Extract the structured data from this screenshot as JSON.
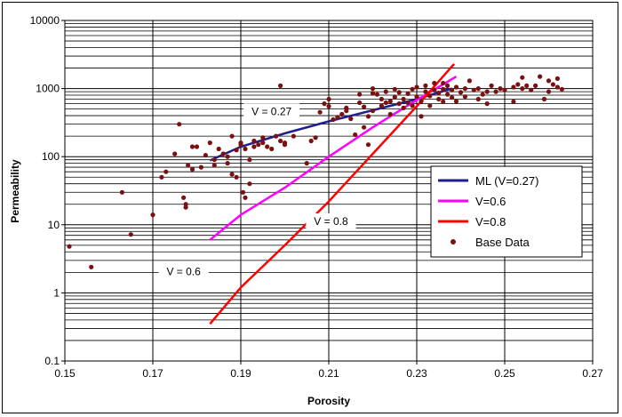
{
  "chart_data": {
    "type": "scatter",
    "title": "",
    "xlabel": "Porosity",
    "ylabel": "Permeability",
    "xlim": [
      0.15,
      0.27
    ],
    "ylim": [
      0.1,
      10000
    ],
    "yscale": "log",
    "x_ticks": [
      "0.15",
      "0.17",
      "0.19",
      "0.21",
      "0.23",
      "0.25",
      "0.27"
    ],
    "y_ticks": [
      "0.1",
      "1",
      "10",
      "100",
      "1000",
      "10000"
    ],
    "grid": true,
    "legend_position": "right",
    "annotations": [
      {
        "text": "V = 0.27",
        "x": 0.197,
        "y": 460
      },
      {
        "text": "V = 0.6",
        "x": 0.177,
        "y": 2.05
      },
      {
        "text": "V = 0.8",
        "x": 0.2105,
        "y": 11.2
      }
    ],
    "series": [
      {
        "name": "ML (V=0.27)",
        "kind": "line",
        "color": "#1f1f8f",
        "x": [
          0.183,
          0.19,
          0.2,
          0.21,
          0.22,
          0.23,
          0.238
        ],
        "y": [
          88,
          140,
          220,
          330,
          480,
          700,
          1000
        ]
      },
      {
        "name": "V=0.6",
        "kind": "line",
        "color": "#ff00ff",
        "x": [
          0.183,
          0.19,
          0.2,
          0.21,
          0.22,
          0.23,
          0.239
        ],
        "y": [
          6,
          14,
          35,
          100,
          270,
          680,
          1500
        ]
      },
      {
        "name": "V=0.8",
        "kind": "line",
        "color": "#ff0000",
        "x": [
          0.183,
          0.19,
          0.2,
          0.21,
          0.22,
          0.23,
          0.2385
        ],
        "y": [
          0.35,
          1.2,
          5,
          22,
          110,
          550,
          2300
        ]
      },
      {
        "name": "Base Data",
        "kind": "scatter",
        "color": "#7b1010",
        "points": [
          [
            0.151,
            4.8
          ],
          [
            0.156,
            2.4
          ],
          [
            0.163,
            30
          ],
          [
            0.165,
            7.2
          ],
          [
            0.17,
            14
          ],
          [
            0.172,
            50
          ],
          [
            0.173,
            60
          ],
          [
            0.175,
            110
          ],
          [
            0.176,
            300
          ],
          [
            0.177,
            25
          ],
          [
            0.1775,
            20
          ],
          [
            0.1775,
            18
          ],
          [
            0.178,
            75
          ],
          [
            0.179,
            140
          ],
          [
            0.179,
            65
          ],
          [
            0.18,
            140
          ],
          [
            0.181,
            70
          ],
          [
            0.182,
            105
          ],
          [
            0.183,
            160
          ],
          [
            0.184,
            90
          ],
          [
            0.184,
            75
          ],
          [
            0.185,
            130
          ],
          [
            0.186,
            110
          ],
          [
            0.187,
            80
          ],
          [
            0.187,
            100
          ],
          [
            0.188,
            200
          ],
          [
            0.188,
            55
          ],
          [
            0.189,
            50
          ],
          [
            0.189,
            125
          ],
          [
            0.19,
            160
          ],
          [
            0.19,
            150
          ],
          [
            0.1905,
            30
          ],
          [
            0.191,
            25
          ],
          [
            0.191,
            130
          ],
          [
            0.192,
            40
          ],
          [
            0.192,
            90
          ],
          [
            0.193,
            170
          ],
          [
            0.193,
            140
          ],
          [
            0.194,
            150
          ],
          [
            0.195,
            190
          ],
          [
            0.195,
            160
          ],
          [
            0.196,
            140
          ],
          [
            0.197,
            130
          ],
          [
            0.198,
            200
          ],
          [
            0.199,
            1100
          ],
          [
            0.199,
            170
          ],
          [
            0.2,
            150
          ],
          [
            0.2,
            160
          ],
          [
            0.202,
            200
          ],
          [
            0.205,
            80
          ],
          [
            0.206,
            170
          ],
          [
            0.207,
            190
          ],
          [
            0.208,
            450
          ],
          [
            0.209,
            600
          ],
          [
            0.21,
            550
          ],
          [
            0.21,
            700
          ],
          [
            0.211,
            350
          ],
          [
            0.212,
            380
          ],
          [
            0.213,
            420
          ],
          [
            0.214,
            470
          ],
          [
            0.214,
            520
          ],
          [
            0.215,
            360
          ],
          [
            0.216,
            210
          ],
          [
            0.217,
            620
          ],
          [
            0.217,
            820
          ],
          [
            0.218,
            270
          ],
          [
            0.218,
            540
          ],
          [
            0.219,
            150
          ],
          [
            0.219,
            390
          ],
          [
            0.22,
            470
          ],
          [
            0.22,
            850
          ],
          [
            0.221,
            820
          ],
          [
            0.222,
            560
          ],
          [
            0.222,
            700
          ],
          [
            0.223,
            900
          ],
          [
            0.224,
            420
          ],
          [
            0.224,
            650
          ],
          [
            0.225,
            980
          ],
          [
            0.225,
            750
          ],
          [
            0.226,
            600
          ],
          [
            0.226,
            880
          ],
          [
            0.227,
            520
          ],
          [
            0.227,
            700
          ],
          [
            0.228,
            620
          ],
          [
            0.228,
            840
          ],
          [
            0.229,
            980
          ],
          [
            0.229,
            560
          ],
          [
            0.23,
            760
          ],
          [
            0.23,
            1050
          ],
          [
            0.231,
            650
          ],
          [
            0.231,
            390
          ],
          [
            0.232,
            900
          ],
          [
            0.232,
            1100
          ],
          [
            0.233,
            780
          ],
          [
            0.233,
            560
          ],
          [
            0.234,
            950
          ],
          [
            0.234,
            1200
          ],
          [
            0.235,
            700
          ],
          [
            0.235,
            860
          ],
          [
            0.236,
            980
          ],
          [
            0.236,
            640
          ],
          [
            0.237,
            820
          ],
          [
            0.237,
            1100
          ],
          [
            0.238,
            740
          ],
          [
            0.238,
            950
          ],
          [
            0.239,
            650
          ],
          [
            0.239,
            1050
          ],
          [
            0.24,
            880
          ],
          [
            0.241,
            760
          ],
          [
            0.242,
            1300
          ],
          [
            0.243,
            950
          ],
          [
            0.244,
            1000
          ],
          [
            0.244,
            700
          ],
          [
            0.245,
            820
          ],
          [
            0.246,
            900
          ],
          [
            0.246,
            600
          ],
          [
            0.247,
            1100
          ],
          [
            0.248,
            900
          ],
          [
            0.249,
            1000
          ],
          [
            0.25,
            950
          ],
          [
            0.252,
            640
          ],
          [
            0.252,
            1050
          ],
          [
            0.253,
            1150
          ],
          [
            0.254,
            1450
          ],
          [
            0.254,
            1000
          ],
          [
            0.255,
            1100
          ],
          [
            0.256,
            950
          ],
          [
            0.257,
            1100
          ],
          [
            0.258,
            1500
          ],
          [
            0.259,
            700
          ],
          [
            0.26,
            1300
          ],
          [
            0.26,
            900
          ],
          [
            0.261,
            1150
          ],
          [
            0.262,
            1400
          ],
          [
            0.262,
            1050
          ],
          [
            0.263,
            980
          ],
          [
            0.241,
            1000
          ],
          [
            0.236,
            1200
          ],
          [
            0.22,
            1000
          ],
          [
            0.223,
            620
          ]
        ]
      }
    ]
  }
}
